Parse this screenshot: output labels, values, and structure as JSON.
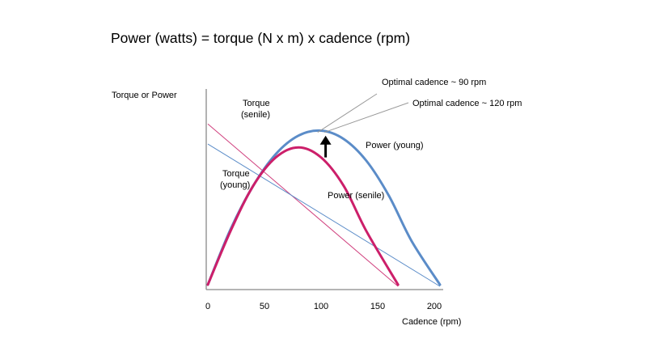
{
  "slide": {
    "formula": "Power (watts)  =  torque (N x m)  x  cadence (rpm)"
  },
  "chart_data": {
    "type": "line",
    "title": "",
    "xlabel": "Cadence (rpm)",
    "ylabel": "Torque or Power",
    "xlim": [
      0,
      210
    ],
    "ylim": [
      0,
      100
    ],
    "x_ticks": [
      "0",
      "50",
      "100",
      "150",
      "200"
    ],
    "y_ticks": [],
    "grid": false,
    "legend": "none",
    "series": [
      {
        "name": "Power (young)",
        "kind": "parabola",
        "x": [
          0,
          20,
          40,
          60,
          80,
          100,
          120,
          140,
          160,
          180,
          205
        ],
        "y": [
          1,
          34,
          60,
          79,
          90,
          93,
          88,
          75,
          54,
          27,
          1
        ],
        "color": "#5b8cc8",
        "width": 3
      },
      {
        "name": "Power (senile)",
        "kind": "parabola",
        "x": [
          0,
          20,
          40,
          60,
          80,
          100,
          120,
          140,
          168
        ],
        "y": [
          1,
          33,
          60,
          77,
          83,
          77,
          60,
          33,
          1
        ],
        "color": "#cc1f6a",
        "width": 3
      },
      {
        "name": "Torque (young)",
        "kind": "line",
        "x": [
          0,
          205
        ],
        "y": [
          85,
          0
        ],
        "color": "#5b8cc8",
        "width": 1
      },
      {
        "name": "Torque (senile)",
        "kind": "line",
        "x": [
          0,
          168
        ],
        "y": [
          97,
          0
        ],
        "color": "#d0407e",
        "width": 1
      }
    ],
    "annotations": [
      {
        "text": "Power (young)",
        "series": "Power (young)"
      },
      {
        "text": "Power (senile)",
        "series": "Power (senile)"
      },
      {
        "text": [
          "Torque",
          "(young)"
        ],
        "series": "Torque (young)"
      },
      {
        "text": [
          "Torque",
          "(senile)"
        ],
        "series": "Torque (senile)"
      },
      {
        "text": "Optimal cadence ~ 90 rpm",
        "points_to": [
          97,
          92
        ]
      },
      {
        "text": "Optimal cadence ~ 120 rpm",
        "points_to": [
          103,
          92
        ]
      }
    ],
    "arrow": {
      "from": [
        104,
        77
      ],
      "to": [
        104,
        90
      ],
      "color": "#000000"
    },
    "colors": {
      "axis": "#888888",
      "leader": "#999999",
      "text": "#000000"
    }
  }
}
